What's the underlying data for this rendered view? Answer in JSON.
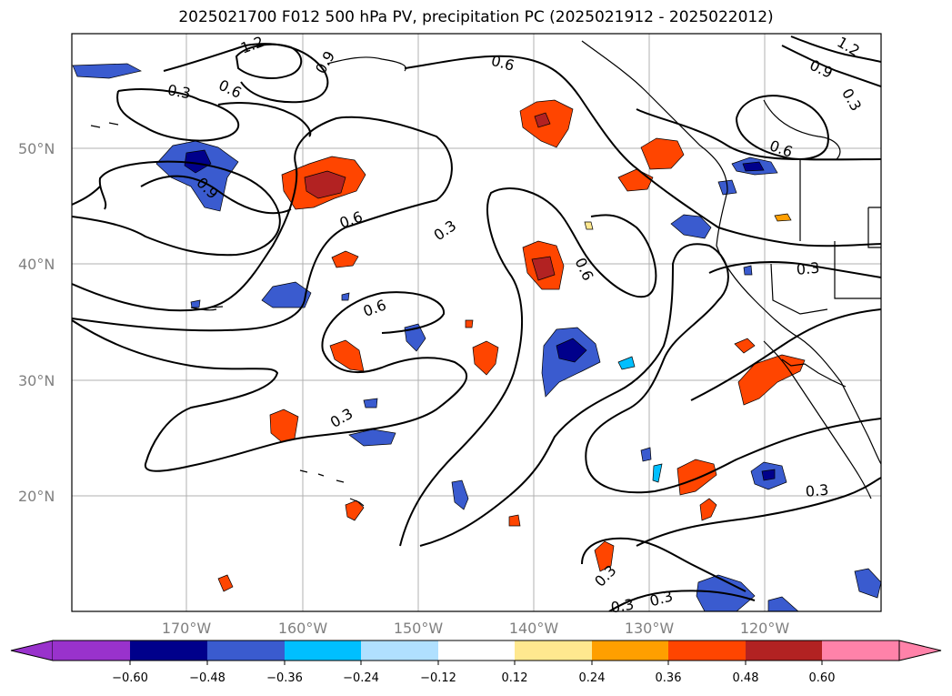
{
  "title": "2025021700 F012 500 hPa PV, precipitation PC (2025021912 - 2025022012)",
  "map": {
    "lat_labels": [
      "20°N",
      "30°N",
      "40°N",
      "50°N"
    ],
    "lon_labels": [
      "170°W",
      "160°W",
      "150°W",
      "140°W",
      "130°W",
      "120°W"
    ],
    "contour_labels": [
      "1.2",
      "0.9",
      "0.6",
      "0.3",
      "0.6",
      "0.9",
      "0.6",
      "0.3",
      "0.6",
      "0.6",
      "0.3",
      "1.2",
      "0.9",
      "0.3",
      "0.6",
      "0.3",
      "0.3",
      "0.3",
      "0.3",
      "0.3"
    ],
    "colors": {
      "neg_strong": "#00008b",
      "neg_mid": "#3a5bcf",
      "neg_light": "#00bfff",
      "pos_light": "#ff9f00",
      "pos_mid": "#ff4500",
      "pos_strong": "#b22222"
    }
  },
  "colorbar": {
    "ticks": [
      "−0.60",
      "−0.48",
      "−0.36",
      "−0.24",
      "−0.12",
      "0.12",
      "0.24",
      "0.36",
      "0.48",
      "0.60"
    ],
    "colors": [
      "#9932cc",
      "#00008b",
      "#3a5bcf",
      "#00bfff",
      "#b0e0ff",
      "#ffffff",
      "#ffe88f",
      "#ff9f00",
      "#ff4500",
      "#b22222",
      "#ff82a9"
    ]
  }
}
